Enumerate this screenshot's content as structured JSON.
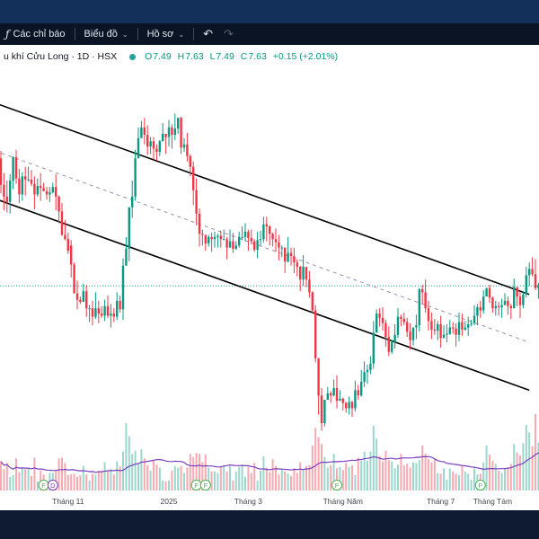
{
  "toolbar": {
    "indicators_label": "Các chỉ báo",
    "chart_label": "Biểu đồ",
    "profile_label": "Hồ sơ"
  },
  "legend": {
    "symbol": "u khí Cửu Long · 1D · HSX",
    "open_key": "O",
    "open": "7.49",
    "high_key": "H",
    "high": "7.63",
    "low_key": "L",
    "low": "7.49",
    "close_key": "C",
    "close": "7.63",
    "change": "+0.15 (+2.01%)"
  },
  "colors": {
    "up": "#089981",
    "down": "#f23645",
    "volume_ma": "#7b3fbf",
    "live_line": "#26a69a",
    "event_badge": "#4caf50",
    "dividend_badge": "#7b3fbf"
  },
  "x_axis": {
    "labels": [
      {
        "text": "Tháng 11",
        "bar": 22
      },
      {
        "text": "2025",
        "bar": 55
      },
      {
        "text": "Tháng 3",
        "bar": 81
      },
      {
        "text": "Tháng Năm",
        "bar": 112
      },
      {
        "text": "Tháng 7",
        "bar": 144
      },
      {
        "text": "Tháng Tám",
        "bar": 161
      }
    ]
  },
  "events": [
    {
      "type": "F",
      "bar": 14
    },
    {
      "type": "D",
      "bar": 17
    },
    {
      "type": "F",
      "bar": 64
    },
    {
      "type": "F",
      "bar": 67
    },
    {
      "type": "F",
      "bar": 110
    },
    {
      "type": "F",
      "bar": 157
    }
  ],
  "chart_data": {
    "type": "candlestick",
    "timeframe": "1D",
    "exchange": "HSX",
    "price_scale": [
      5.8,
      9.6
    ],
    "last_price": 7.63,
    "bars": [
      [
        8.83,
        8.58,
        8.9,
        8.5
      ],
      [
        8.58,
        8.47,
        8.69,
        8.34
      ],
      [
        8.47,
        8.42,
        8.62,
        8.32
      ],
      [
        8.42,
        8.62,
        8.68,
        8.31
      ],
      [
        8.62,
        8.84,
        8.85,
        8.54
      ],
      [
        8.84,
        8.64,
        8.91,
        8.59
      ],
      [
        8.64,
        8.49,
        8.73,
        8.41
      ],
      [
        8.49,
        8.66,
        8.7,
        8.43
      ],
      [
        8.66,
        8.63,
        8.75,
        8.48
      ],
      [
        8.63,
        8.63,
        8.75,
        8.61
      ],
      [
        8.63,
        8.59,
        8.72,
        8.57
      ],
      [
        8.59,
        8.49,
        8.66,
        8.35
      ],
      [
        8.49,
        8.57,
        8.64,
        8.47
      ],
      [
        8.57,
        8.55,
        8.69,
        8.43
      ],
      [
        8.55,
        8.52,
        8.6,
        8.52
      ],
      [
        8.52,
        8.49,
        8.56,
        8.44
      ],
      [
        8.49,
        8.51,
        8.56,
        8.42
      ],
      [
        8.51,
        8.56,
        8.6,
        8.5
      ],
      [
        8.56,
        8.47,
        8.68,
        8.34
      ],
      [
        8.47,
        8.33,
        8.48,
        8.22
      ],
      [
        8.33,
        8.11,
        8.41,
        8.1
      ],
      [
        8.11,
        8.07,
        8.25,
        8.06
      ],
      [
        8.07,
        7.96,
        8.13,
        7.93
      ],
      [
        8.01,
        7.83,
        8.06,
        7.71
      ],
      [
        7.83,
        7.56,
        7.85,
        7.56
      ],
      [
        7.56,
        7.5,
        7.68,
        7.41
      ],
      [
        7.5,
        7.48,
        7.53,
        7.46
      ],
      [
        7.48,
        7.58,
        7.65,
        7.48
      ],
      [
        7.58,
        7.42,
        7.64,
        7.34
      ],
      [
        7.42,
        7.42,
        7.45,
        7.29
      ],
      [
        7.42,
        7.34,
        7.49,
        7.26
      ],
      [
        7.34,
        7.42,
        7.57,
        7.32
      ],
      [
        7.42,
        7.37,
        7.49,
        7.28
      ],
      [
        7.37,
        7.35,
        7.44,
        7.33
      ],
      [
        7.35,
        7.44,
        7.5,
        7.3
      ],
      [
        7.44,
        7.35,
        7.54,
        7.33
      ],
      [
        7.35,
        7.37,
        7.46,
        7.24
      ],
      [
        7.37,
        7.34,
        7.42,
        7.29
      ],
      [
        7.34,
        7.49,
        7.57,
        7.31
      ],
      [
        7.49,
        7.41,
        7.54,
        7.38
      ],
      [
        7.41,
        7.82,
        7.89,
        7.31
      ],
      [
        7.82,
        7.98,
        8.09,
        7.91
      ],
      [
        7.98,
        8.37,
        8.36,
        7.86
      ],
      [
        8.37,
        8.47,
        8.62,
        8.27
      ],
      [
        8.47,
        8.83,
        8.91,
        8.43
      ],
      [
        8.83,
        9.02,
        9.12,
        8.83
      ],
      [
        9.02,
        9.12,
        9.18,
        9.02
      ],
      [
        9.12,
        9.05,
        9.21,
        8.96
      ],
      [
        9.05,
        8.94,
        9.14,
        8.86
      ],
      [
        8.94,
        8.99,
        9.03,
        8.87
      ],
      [
        8.99,
        8.92,
        9.03,
        8.82
      ],
      [
        8.92,
        8.89,
        8.96,
        8.81
      ],
      [
        8.89,
        8.99,
        9.0,
        8.85
      ],
      [
        8.99,
        9.06,
        9.16,
        9.04
      ],
      [
        9.06,
        9.03,
        9.06,
        8.87
      ],
      [
        9.03,
        9.12,
        9.19,
        8.94
      ],
      [
        9.12,
        9.05,
        9.15,
        8.92
      ],
      [
        9.05,
        9.11,
        9.25,
        9.0
      ],
      [
        9.11,
        9.21,
        9.21,
        9.06
      ],
      [
        9.21,
        8.93,
        9.22,
        8.87
      ],
      [
        8.93,
        8.96,
        9.02,
        8.89
      ],
      [
        8.96,
        8.85,
        9.07,
        8.8
      ],
      [
        8.85,
        8.75,
        8.87,
        8.66
      ],
      [
        8.75,
        8.53,
        8.8,
        8.39
      ],
      [
        8.53,
        8.31,
        8.64,
        8.2
      ],
      [
        8.31,
        8.12,
        8.36,
        8.0
      ],
      [
        8.12,
        8.11,
        8.16,
        8.01
      ],
      [
        8.11,
        8.03,
        8.11,
        7.96
      ],
      [
        8.03,
        8.09,
        8.11,
        8.0
      ],
      [
        8.09,
        8.07,
        8.13,
        7.95
      ],
      [
        8.07,
        8.09,
        8.14,
        7.99
      ],
      [
        8.09,
        8.1,
        8.12,
        7.99
      ],
      [
        8.1,
        8.07,
        8.15,
        7.99
      ],
      [
        8.07,
        8.07,
        8.16,
        8.06
      ],
      [
        8.07,
        7.99,
        8.09,
        7.88
      ],
      [
        7.99,
        8.05,
        8.16,
        7.99
      ],
      [
        8.05,
        7.98,
        8.13,
        7.94
      ],
      [
        7.98,
        8.01,
        8.05,
        7.97
      ],
      [
        8.01,
        8.09,
        8.14,
        7.99
      ],
      [
        8.09,
        8.09,
        8.19,
        8.06
      ],
      [
        8.09,
        8.14,
        8.22,
        8.05
      ],
      [
        8.14,
        8.08,
        8.16,
        7.96
      ],
      [
        8.08,
        8.05,
        8.16,
        8.02
      ],
      [
        8.05,
        7.97,
        8.07,
        7.95
      ],
      [
        7.97,
        8.06,
        8.14,
        7.89
      ],
      [
        8.06,
        8.07,
        8.15,
        8.01
      ],
      [
        8.07,
        8.21,
        8.28,
        8.04
      ],
      [
        8.21,
        8.19,
        8.28,
        8.05
      ],
      [
        8.19,
        8.12,
        8.2,
        8.01
      ],
      [
        8.12,
        8.07,
        8.13,
        8.0
      ],
      [
        8.07,
        8.04,
        8.17,
        7.95
      ],
      [
        8.04,
        7.99,
        8.11,
        7.87
      ],
      [
        7.99,
        7.99,
        8.01,
        7.9
      ],
      [
        7.99,
        7.86,
        7.99,
        7.75
      ],
      [
        7.86,
        7.94,
        8.09,
        7.85
      ],
      [
        7.94,
        7.91,
        7.99,
        7.82
      ],
      [
        7.91,
        7.85,
        7.99,
        7.75
      ],
      [
        7.85,
        7.81,
        7.88,
        7.72
      ],
      [
        7.81,
        7.69,
        7.82,
        7.58
      ],
      [
        7.69,
        7.81,
        7.92,
        7.63
      ],
      [
        7.81,
        7.69,
        7.81,
        7.62
      ],
      [
        7.69,
        7.57,
        7.77,
        7.52
      ],
      [
        7.57,
        7.4,
        7.58,
        7.37
      ],
      [
        7.4,
        6.95,
        7.45,
        6.91
      ],
      [
        6.95,
        6.6,
        6.94,
        6.42
      ],
      [
        6.6,
        6.34,
        6.67,
        6.27
      ],
      [
        6.34,
        6.56,
        6.56,
        6.31
      ],
      [
        6.56,
        6.62,
        6.68,
        6.57
      ],
      [
        6.62,
        6.6,
        6.64,
        6.53
      ],
      [
        6.6,
        6.67,
        6.75,
        6.59
      ],
      [
        6.67,
        6.55,
        6.79,
        6.48
      ],
      [
        6.55,
        6.57,
        6.65,
        6.57
      ],
      [
        6.57,
        6.53,
        6.58,
        6.46
      ],
      [
        6.53,
        6.48,
        6.54,
        6.44
      ],
      [
        6.48,
        6.54,
        6.59,
        6.42
      ],
      [
        6.54,
        6.48,
        6.55,
        6.4
      ],
      [
        6.48,
        6.65,
        6.74,
        6.45
      ],
      [
        6.65,
        6.6,
        6.7,
        6.56
      ],
      [
        6.6,
        6.73,
        6.84,
        6.59
      ],
      [
        6.73,
        6.82,
        6.92,
        6.68
      ],
      [
        6.82,
        6.84,
        6.89,
        6.71
      ],
      [
        6.84,
        6.9,
        6.97,
        6.8
      ],
      [
        6.9,
        7.19,
        7.3,
        6.85
      ],
      [
        7.19,
        7.37,
        7.41,
        7.2
      ],
      [
        7.37,
        7.33,
        7.42,
        7.25
      ],
      [
        7.33,
        7.28,
        7.43,
        7.21
      ],
      [
        7.28,
        7.15,
        7.31,
        7.06
      ],
      [
        7.15,
        7.01,
        7.25,
        6.97
      ],
      [
        7.01,
        7.1,
        7.12,
        6.99
      ],
      [
        7.1,
        7.17,
        7.27,
        7.04
      ],
      [
        7.17,
        7.34,
        7.42,
        7.14
      ],
      [
        7.34,
        7.32,
        7.36,
        7.25
      ],
      [
        7.32,
        7.29,
        7.38,
        7.26
      ],
      [
        7.29,
        7.2,
        7.33,
        7.15
      ],
      [
        7.2,
        7.12,
        7.28,
        7.03
      ],
      [
        7.12,
        7.24,
        7.24,
        7.07
      ],
      [
        7.24,
        7.26,
        7.36,
        7.13
      ],
      [
        7.26,
        7.6,
        7.61,
        7.2
      ],
      [
        7.6,
        7.57,
        7.64,
        7.46
      ],
      [
        7.57,
        7.42,
        7.69,
        7.38
      ],
      [
        7.42,
        7.3,
        7.49,
        7.21
      ],
      [
        7.3,
        7.22,
        7.38,
        7.13
      ],
      [
        7.22,
        7.21,
        7.32,
        7.17
      ],
      [
        7.21,
        7.27,
        7.3,
        7.12
      ],
      [
        7.27,
        7.14,
        7.35,
        7.05
      ],
      [
        7.14,
        7.17,
        7.26,
        7.14
      ],
      [
        7.17,
        7.18,
        7.27,
        7.1
      ],
      [
        7.18,
        7.24,
        7.31,
        7.17
      ],
      [
        7.24,
        7.23,
        7.29,
        7.18
      ],
      [
        7.23,
        7.17,
        7.28,
        7.06
      ],
      [
        7.17,
        7.29,
        7.38,
        7.11
      ],
      [
        7.29,
        7.22,
        7.37,
        7.16
      ],
      [
        7.22,
        7.24,
        7.3,
        7.21
      ],
      [
        7.24,
        7.27,
        7.34,
        7.16
      ],
      [
        7.27,
        7.28,
        7.31,
        7.25
      ],
      [
        7.28,
        7.35,
        7.45,
        7.26
      ],
      [
        7.35,
        7.43,
        7.46,
        7.26
      ],
      [
        7.43,
        7.4,
        7.49,
        7.33
      ],
      [
        7.4,
        7.53,
        7.59,
        7.37
      ],
      [
        7.53,
        7.61,
        7.61,
        7.56
      ],
      [
        7.61,
        7.52,
        7.64,
        7.47
      ],
      [
        7.52,
        7.42,
        7.53,
        7.38
      ],
      [
        7.42,
        7.44,
        7.49,
        7.35
      ],
      [
        7.44,
        7.43,
        7.48,
        7.35
      ],
      [
        7.43,
        7.45,
        7.51,
        7.33
      ],
      [
        7.45,
        7.49,
        7.56,
        7.45
      ],
      [
        7.49,
        7.44,
        7.53,
        7.36
      ],
      [
        7.44,
        7.42,
        7.46,
        7.32
      ],
      [
        7.42,
        7.62,
        7.7,
        7.42
      ],
      [
        7.62,
        7.53,
        7.62,
        7.44
      ],
      [
        7.53,
        7.45,
        7.57,
        7.33
      ],
      [
        7.45,
        7.55,
        7.58,
        7.42
      ],
      [
        7.55,
        7.73,
        7.81,
        7.52
      ],
      [
        7.73,
        7.79,
        7.85,
        7.63
      ],
      [
        7.79,
        7.74,
        7.9,
        7.72
      ],
      [
        7.74,
        7.61,
        7.88,
        7.59
      ],
      [
        7.61,
        7.64,
        7.66,
        7.51
      ],
      [
        7.64,
        7.59,
        7.75,
        7.57
      ],
      [
        7.59,
        7.47,
        7.66,
        7.47
      ],
      [
        7.49,
        7.63,
        7.63,
        7.49
      ]
    ],
    "volume": [
      0.38,
      0.28,
      0.36,
      0.18,
      0.2,
      0.42,
      0.24,
      0.3,
      0.28,
      0.29,
      0.19,
      0.43,
      0.12,
      0.26,
      0.21,
      0.13,
      0.23,
      0.23,
      0.26,
      0.42,
      0.43,
      0.36,
      0.2,
      0.21,
      0.22,
      0.18,
      0.2,
      0.32,
      0.21,
      0.13,
      0.22,
      0.21,
      0.26,
      0.26,
      0.37,
      0.25,
      0.28,
      0.21,
      0.38,
      0.32,
      0.51,
      0.88,
      0.71,
      0.48,
      0.52,
      0.35,
      0.54,
      0.42,
      0.33,
      0.26,
      0.39,
      0.34,
      0.3,
      0.13,
      0.12,
      0.13,
      0.26,
      0.32,
      0.3,
      0.32,
      0.23,
      0.3,
      0.48,
      0.44,
      0.49,
      0.48,
      0.37,
      0.47,
      0.3,
      0.25,
      0.25,
      0.23,
      0.32,
      0.33,
      0.25,
      0.32,
      0.13,
      0.25,
      0.31,
      0.34,
      0.18,
      0.31,
      0.23,
      0.36,
      0.13,
      0.26,
      0.45,
      0.3,
      0.24,
      0.41,
      0.32,
      0.21,
      0.28,
      0.25,
      0.22,
      0.19,
      0.29,
      0.23,
      0.37,
      0.27,
      0.32,
      0.33,
      0.59,
      0.82,
      0.7,
      0.61,
      0.44,
      0.3,
      0.33,
      0.48,
      0.29,
      0.31,
      0.27,
      0.36,
      0.31,
      0.33,
      0.2,
      0.43,
      0.39,
      0.51,
      0.39,
      0.51,
      0.85,
      0.68,
      0.45,
      0.38,
      0.52,
      0.4,
      0.38,
      0.29,
      0.34,
      0.48,
      0.33,
      0.35,
      0.3,
      0.37,
      0.36,
      0.4,
      0.59,
      0.48,
      0.41,
      0.37,
      0.41,
      0.23,
      0.22,
      0.29,
      0.14,
      0.29,
      0.25,
      0.22,
      0.2,
      0.33,
      0.25,
      0.22,
      0.14,
      0.29,
      0.21,
      0.22,
      0.37,
      0.59,
      0.47,
      0.39,
      0.35,
      0.26,
      0.23,
      0.29,
      0.3,
      0.35,
      0.61,
      0.5,
      0.46,
      0.62,
      0.86,
      0.76,
      0.58,
      1.0,
      0.63,
      0.34,
      0.42,
      0.49
    ],
    "channel": {
      "upper": {
        "from": [
          -2,
          9.35
        ],
        "to": [
          173,
          7.55
        ]
      },
      "middle": {
        "from": [
          -2,
          8.9
        ],
        "to": [
          173,
          7.1
        ]
      },
      "lower": {
        "from": [
          -2,
          8.45
        ],
        "to": [
          173,
          6.65
        ]
      }
    }
  }
}
